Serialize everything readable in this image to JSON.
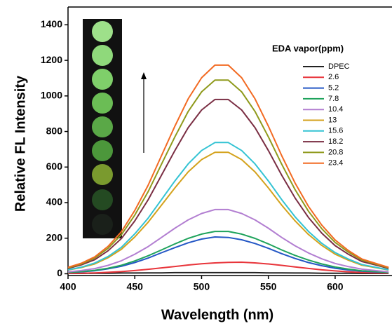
{
  "chart_data": {
    "type": "line",
    "xlabel": "Wavelength (nm)",
    "ylabel": "Relative FL Intensity",
    "legend_title": "EDA vapor(ppm)",
    "x": [
      400,
      410,
      420,
      430,
      440,
      450,
      460,
      470,
      480,
      490,
      500,
      510,
      520,
      530,
      540,
      550,
      560,
      570,
      580,
      590,
      600,
      610,
      620,
      630,
      640
    ],
    "xlim": [
      400,
      641
    ],
    "ylim": [
      -10,
      1500
    ],
    "xticks": [
      400,
      450,
      500,
      550,
      600
    ],
    "yticks": [
      0,
      200,
      400,
      600,
      800,
      1000,
      1200,
      1400
    ],
    "series": [
      {
        "name": "DPEC",
        "color": "#222222",
        "values": [
          2,
          2,
          3,
          3,
          4,
          4,
          5,
          5,
          6,
          6,
          6,
          6,
          6,
          6,
          6,
          5,
          5,
          4,
          4,
          3,
          3,
          3,
          2,
          2,
          2
        ]
      },
      {
        "name": "2.6",
        "color": "#e8343a",
        "values": [
          2,
          3,
          5,
          8,
          12,
          18,
          25,
          33,
          41,
          49,
          56,
          61,
          64,
          65,
          61,
          55,
          47,
          38,
          30,
          22,
          16,
          11,
          7,
          5,
          3
        ]
      },
      {
        "name": "5.2",
        "color": "#2457c5",
        "values": [
          6,
          11,
          17,
          28,
          42,
          63,
          88,
          118,
          147,
          174,
          195,
          207,
          204,
          191,
          170,
          143,
          113,
          86,
          63,
          45,
          31,
          21,
          14,
          10,
          6
        ]
      },
      {
        "name": "7.8",
        "color": "#1fa35c",
        "values": [
          7,
          12,
          19,
          31,
          48,
          72,
          101,
          134,
          168,
          199,
          223,
          238,
          238,
          223,
          199,
          168,
          134,
          103,
          77,
          55,
          38,
          26,
          17,
          12,
          7
        ]
      },
      {
        "name": "10.4",
        "color": "#b27ed1",
        "values": [
          11,
          18,
          29,
          47,
          73,
          110,
          153,
          204,
          256,
          303,
          339,
          361,
          361,
          339,
          303,
          256,
          204,
          157,
          117,
          84,
          58,
          40,
          26,
          18,
          11
        ]
      },
      {
        "name": "13",
        "color": "#d4a21c",
        "values": [
          21,
          35,
          55,
          90,
          138,
          207,
          290,
          386,
          483,
          573,
          642,
          683,
          683,
          642,
          573,
          483,
          386,
          297,
          221,
          159,
          110,
          76,
          48,
          35,
          21
        ]
      },
      {
        "name": "15.6",
        "color": "#33c3d3",
        "values": [
          22,
          37,
          60,
          97,
          149,
          224,
          313,
          417,
          522,
          618,
          693,
          738,
          738,
          693,
          618,
          522,
          417,
          320,
          238,
          171,
          119,
          82,
          52,
          37,
          22
        ]
      },
      {
        "name": "18.2",
        "color": "#7a2e43",
        "values": [
          30,
          50,
          79,
          129,
          198,
          297,
          416,
          554,
          693,
          822,
          921,
          980,
          980,
          921,
          822,
          693,
          554,
          426,
          317,
          228,
          158,
          109,
          69,
          50,
          30
        ]
      },
      {
        "name": "20.8",
        "color": "#8f9a1c",
        "values": [
          33,
          55,
          88,
          143,
          220,
          330,
          462,
          616,
          770,
          913,
          1023,
          1089,
          1089,
          1023,
          913,
          770,
          616,
          473,
          352,
          253,
          176,
          121,
          77,
          55,
          33
        ]
      },
      {
        "name": "23.4",
        "color": "#f26a22",
        "values": [
          36,
          59,
          95,
          154,
          237,
          356,
          498,
          664,
          830,
          984,
          1102,
          1173,
          1173,
          1102,
          984,
          830,
          664,
          510,
          379,
          273,
          190,
          130,
          83,
          59,
          36
        ]
      }
    ]
  }
}
